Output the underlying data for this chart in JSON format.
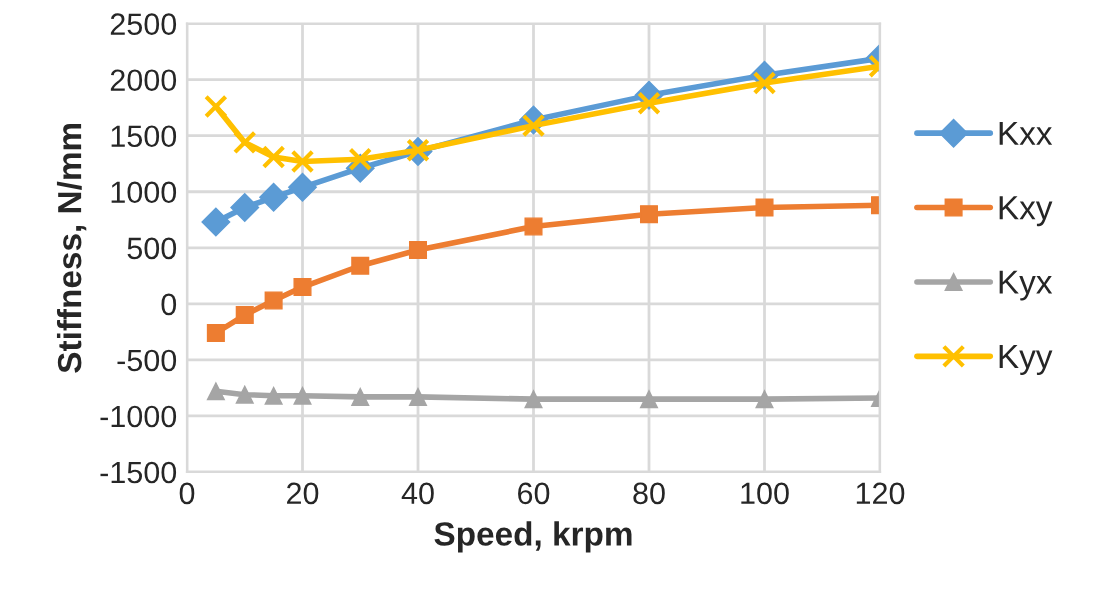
{
  "chart_data": {
    "type": "line",
    "xlabel": "Speed, krpm",
    "ylabel": "Stiffness, N/mm",
    "x": [
      5,
      10,
      15,
      20,
      30,
      40,
      60,
      80,
      100,
      120
    ],
    "series": [
      {
        "name": "Kxx",
        "color": "#5b9bd5",
        "marker": "diamond",
        "values": [
          730,
          860,
          950,
          1040,
          1210,
          1360,
          1640,
          1860,
          2040,
          2190
        ]
      },
      {
        "name": "Kxy",
        "color": "#ed7d31",
        "marker": "square",
        "values": [
          -260,
          -100,
          30,
          150,
          340,
          480,
          690,
          800,
          860,
          880
        ]
      },
      {
        "name": "Kyx",
        "color": "#a5a5a5",
        "marker": "triangle",
        "values": [
          -780,
          -810,
          -820,
          -820,
          -830,
          -830,
          -850,
          -850,
          -850,
          -840
        ]
      },
      {
        "name": "Kyy",
        "color": "#ffc000",
        "marker": "cross",
        "values": [
          1760,
          1440,
          1310,
          1270,
          1290,
          1370,
          1590,
          1790,
          1970,
          2120
        ]
      }
    ],
    "xlim": [
      0,
      120
    ],
    "xticks": [
      0,
      20,
      40,
      60,
      80,
      100,
      120
    ],
    "ylim": [
      -1500,
      2500
    ],
    "yticks": [
      -1500,
      -1000,
      -500,
      0,
      500,
      1000,
      1500,
      2000,
      2500
    ],
    "grid": true,
    "legend": "right",
    "line_style": "solid"
  }
}
